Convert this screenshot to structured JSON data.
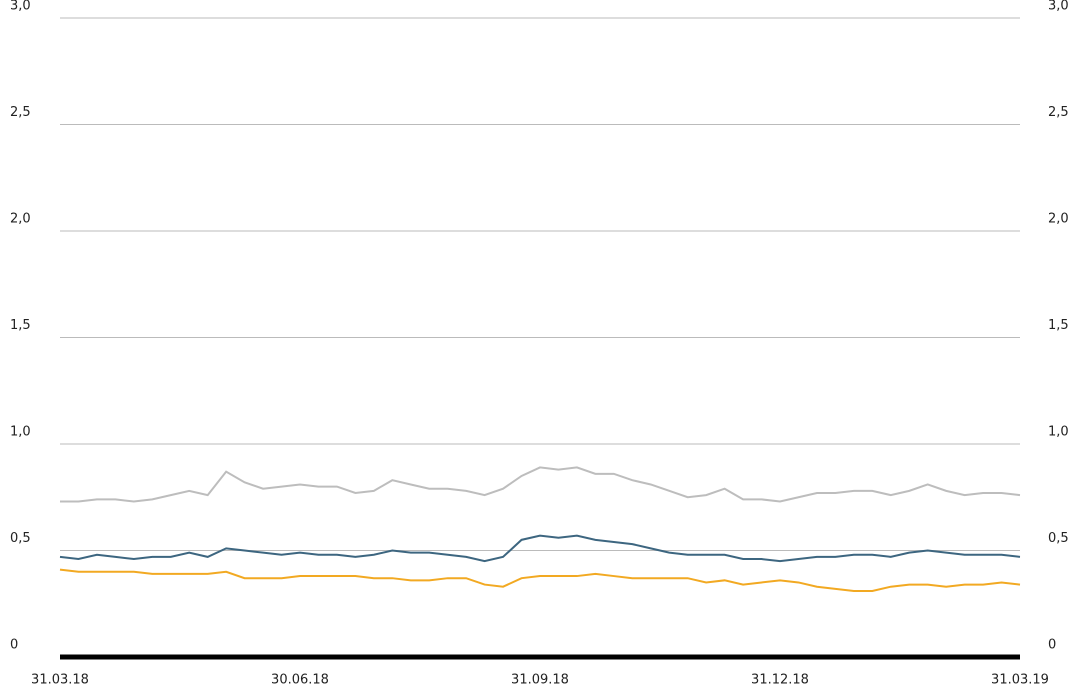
{
  "chart_data": {
    "type": "line",
    "categories": [
      "31.03.18",
      null,
      null,
      null,
      null,
      null,
      null,
      null,
      null,
      null,
      null,
      null,
      null,
      "30.06.18",
      null,
      null,
      null,
      null,
      null,
      null,
      null,
      null,
      null,
      null,
      null,
      null,
      "31.09.18",
      null,
      null,
      null,
      null,
      null,
      null,
      null,
      null,
      null,
      null,
      null,
      null,
      "31.12.18",
      null,
      null,
      null,
      null,
      null,
      null,
      null,
      null,
      null,
      null,
      null,
      null,
      "31.03.19"
    ],
    "series": [
      {
        "color": "#bdbdbd",
        "values": [
          0.73,
          0.73,
          0.74,
          0.74,
          0.73,
          0.74,
          0.76,
          0.78,
          0.76,
          0.87,
          0.82,
          0.79,
          0.8,
          0.81,
          0.8,
          0.8,
          0.77,
          0.78,
          0.83,
          0.81,
          0.79,
          0.79,
          0.78,
          0.76,
          0.79,
          0.85,
          0.89,
          0.88,
          0.89,
          0.86,
          0.86,
          0.83,
          0.81,
          0.78,
          0.75,
          0.76,
          0.79,
          0.74,
          0.74,
          0.73,
          0.75,
          0.77,
          0.77,
          0.78,
          0.78,
          0.76,
          0.78,
          0.81,
          0.78,
          0.76,
          0.77,
          0.77,
          0.76
        ]
      },
      {
        "color": "#3d6680",
        "values": [
          0.47,
          0.46,
          0.48,
          0.47,
          0.46,
          0.47,
          0.47,
          0.49,
          0.47,
          0.51,
          0.5,
          0.49,
          0.48,
          0.49,
          0.48,
          0.48,
          0.47,
          0.48,
          0.5,
          0.49,
          0.49,
          0.48,
          0.47,
          0.45,
          0.47,
          0.55,
          0.57,
          0.56,
          0.57,
          0.55,
          0.54,
          0.53,
          0.51,
          0.49,
          0.48,
          0.48,
          0.48,
          0.46,
          0.46,
          0.45,
          0.46,
          0.47,
          0.47,
          0.48,
          0.48,
          0.47,
          0.49,
          0.5,
          0.49,
          0.48,
          0.48,
          0.48,
          0.47
        ]
      },
      {
        "color": "#f2a922",
        "values": [
          0.41,
          0.4,
          0.4,
          0.4,
          0.4,
          0.39,
          0.39,
          0.39,
          0.39,
          0.4,
          0.37,
          0.37,
          0.37,
          0.38,
          0.38,
          0.38,
          0.38,
          0.37,
          0.37,
          0.36,
          0.36,
          0.37,
          0.37,
          0.34,
          0.33,
          0.37,
          0.38,
          0.38,
          0.38,
          0.39,
          0.38,
          0.37,
          0.37,
          0.37,
          0.37,
          0.35,
          0.36,
          0.34,
          0.35,
          0.36,
          0.35,
          0.33,
          0.32,
          0.31,
          0.31,
          0.33,
          0.34,
          0.34,
          0.33,
          0.34,
          0.34,
          0.35,
          0.34
        ]
      }
    ],
    "ylim": [
      0,
      3
    ],
    "yticks": [
      0,
      {
        "value": 0.5,
        "label": "0,5"
      },
      {
        "value": 1,
        "label": "1,0"
      },
      {
        "value": 1.5,
        "label": "1,5"
      },
      {
        "value": 2,
        "label": "2,0"
      },
      {
        "value": 2.5,
        "label": "2,5"
      },
      {
        "value": 3,
        "label": "3,0"
      }
    ],
    "grid": true
  }
}
